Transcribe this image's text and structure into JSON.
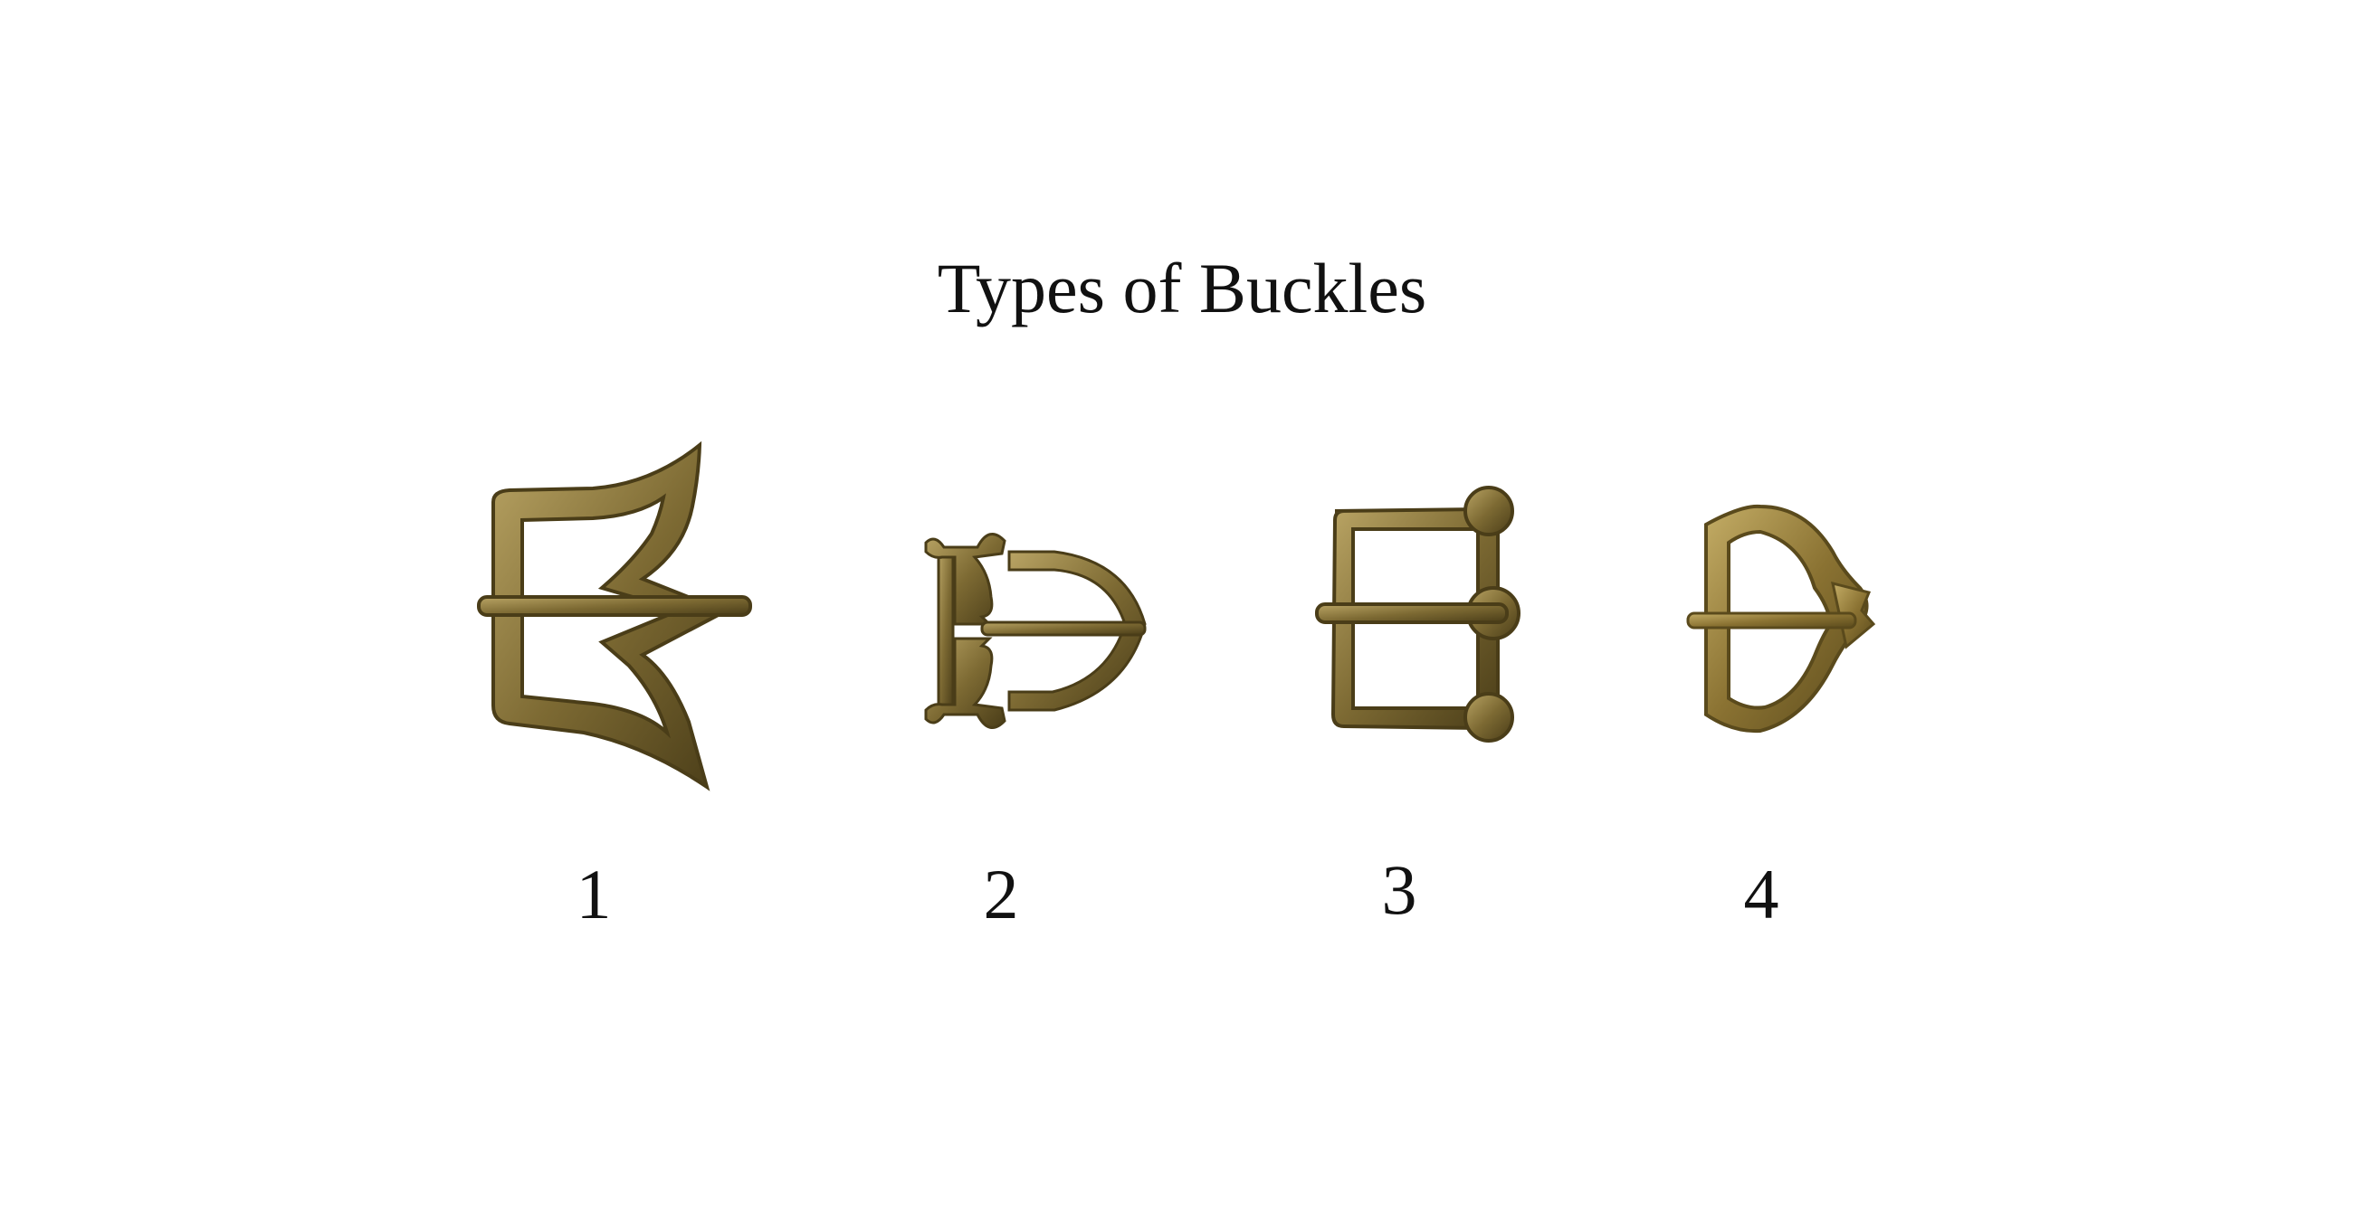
{
  "title": "Types of Buckles",
  "colors": {
    "background": "#ffffff",
    "text": "#111111",
    "brass_dark": "#4a3d18",
    "brass_mid": "#7d6a33",
    "brass_light": "#b9a464"
  },
  "buckles": [
    {
      "number": "1",
      "shape": "trident-buckle"
    },
    {
      "number": "2",
      "shape": "d-buckle-with-plate"
    },
    {
      "number": "3",
      "shape": "square-knobbed-buckle"
    },
    {
      "number": "4",
      "shape": "oval-buckle-with-point"
    }
  ]
}
